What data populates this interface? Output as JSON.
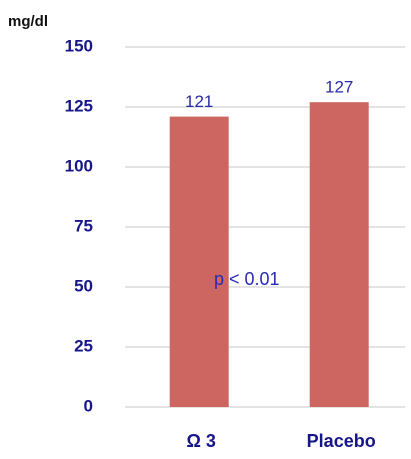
{
  "chart_data": {
    "type": "bar",
    "y_label": "mg/dl",
    "categories": [
      "Ω 3",
      "Placebo"
    ],
    "values": [
      121,
      127
    ],
    "color": "#cd6660",
    "ylim": [
      0,
      150
    ],
    "yticks": [
      0,
      25,
      50,
      75,
      100,
      125,
      150
    ],
    "grid": true,
    "annotation": "p < 0.01"
  }
}
